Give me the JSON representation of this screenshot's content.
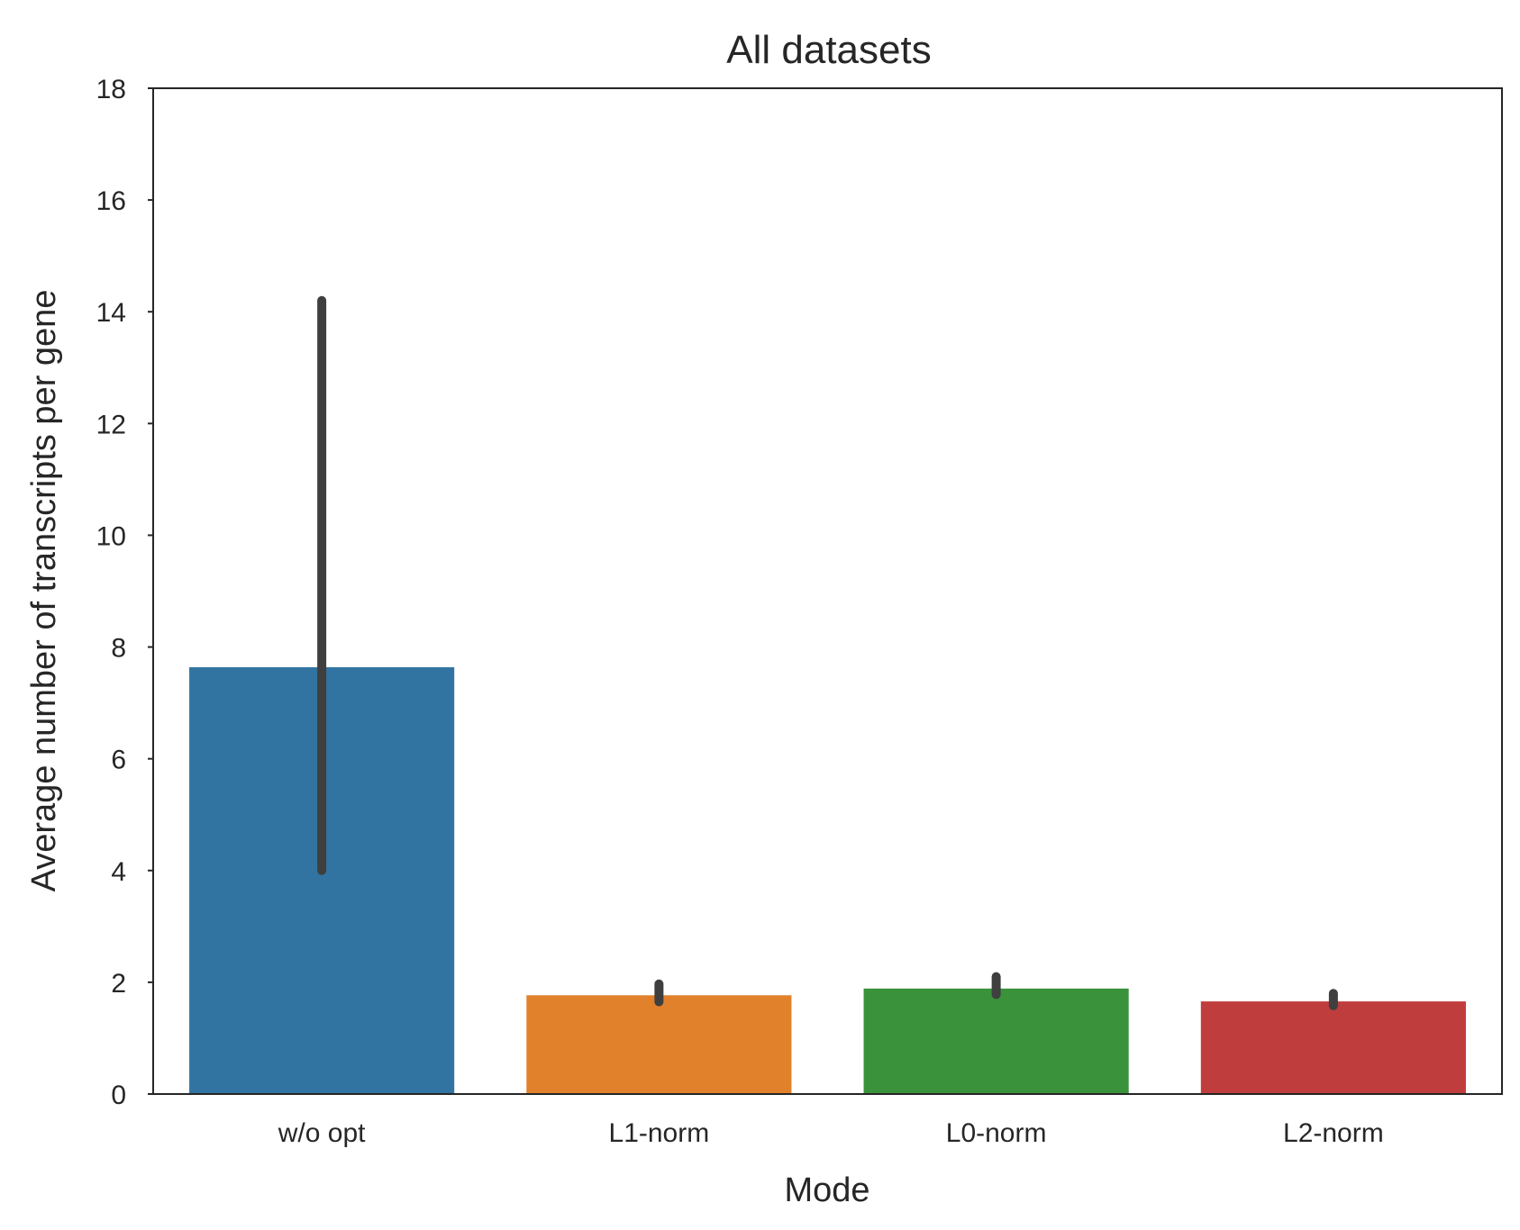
{
  "chart_data": {
    "type": "bar",
    "title": "All datasets",
    "xlabel": "Mode",
    "ylabel": "Average number of transcripts per gene",
    "categories": [
      "w/o opt",
      "L1-norm",
      "L0-norm",
      "L2-norm"
    ],
    "values": [
      7.65,
      1.78,
      1.9,
      1.67
    ],
    "error_low": [
      4.0,
      1.65,
      1.78,
      1.58
    ],
    "error_high": [
      14.2,
      1.97,
      2.1,
      1.8
    ],
    "colors": [
      "#3274a1",
      "#e1812c",
      "#3a923a",
      "#c03d3e"
    ],
    "error_color": "#3f3f3f",
    "ylim": [
      0,
      18
    ],
    "yticks": [
      0,
      2,
      4,
      6,
      8,
      10,
      12,
      14,
      16,
      18
    ],
    "grid": false,
    "legend": "none"
  }
}
